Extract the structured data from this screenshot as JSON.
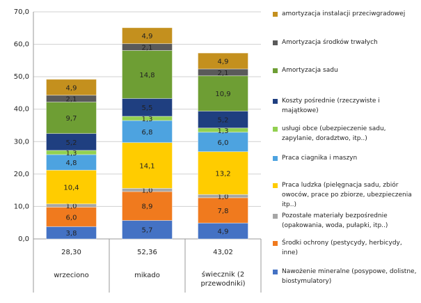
{
  "chart_data": {
    "type": "bar",
    "stacked": true,
    "categories": [
      "wrzeciono",
      "mikado",
      "świecznik (2 przewodniki)"
    ],
    "table_row": [
      {
        "value": 28.3,
        "label": "28,30"
      },
      {
        "value": 52.36,
        "label": "52,36"
      },
      {
        "value": 43.02,
        "label": "43,02"
      }
    ],
    "ylim": [
      0,
      70
    ],
    "yticks": [
      {
        "value": 0,
        "label": "0,0"
      },
      {
        "value": 10,
        "label": "10,0"
      },
      {
        "value": 20,
        "label": "20,0"
      },
      {
        "value": 30,
        "label": "30,0"
      },
      {
        "value": 40,
        "label": "40,0"
      },
      {
        "value": 50,
        "label": "50,0"
      },
      {
        "value": 60,
        "label": "60,0"
      },
      {
        "value": 70,
        "label": "70,0"
      }
    ],
    "grid": true,
    "legend": "right",
    "series": [
      {
        "name": "Nawożenie mineralne (posypowe, dolistne, biostymulatory)",
        "color": "#4472c4",
        "values": [
          3.8,
          5.7,
          4.9
        ],
        "value_labels": [
          "3,8",
          "5,7",
          "4,9"
        ]
      },
      {
        "name": "Środki ochrony (pestycydy, herbicydy, inne)",
        "color": "#f07a1e",
        "values": [
          6.0,
          8.9,
          7.8
        ],
        "value_labels": [
          "6,0",
          "8,9",
          "7,8"
        ]
      },
      {
        "name": "Pozostałe materiały bezpośrednie (opakowania, woda, pułapki, itp..)",
        "color": "#a6a6a6",
        "values": [
          1.0,
          1.0,
          1.0
        ],
        "value_labels": [
          "1,0",
          "1,0",
          "1,0"
        ]
      },
      {
        "name": "Praca ludzka (pielęgnacja sadu, zbiór owoców, prace po zbiorze, ubezpieczenia itp..)",
        "color": "#ffcc00",
        "values": [
          10.4,
          14.1,
          13.2
        ],
        "value_labels": [
          "10,4",
          "14,1",
          "13,2"
        ]
      },
      {
        "name": "Praca ciagnika i maszyn",
        "color": "#4da3e0",
        "values": [
          4.8,
          6.8,
          6.0
        ],
        "value_labels": [
          "4,8",
          "6,8",
          "6,0"
        ]
      },
      {
        "name": "usługi obce (ubezpieczenie sadu, zapylanie, doradztwo, itp..)",
        "color": "#92d050",
        "values": [
          1.3,
          1.3,
          1.3
        ],
        "value_labels": [
          "1,3",
          "1,3",
          "1,3"
        ]
      },
      {
        "name": "Koszty pośrednie (rzeczywiste i majątkowe)",
        "color": "#1f3f80",
        "values": [
          5.2,
          5.5,
          5.2
        ],
        "value_labels": [
          "5,2",
          "5,5",
          "5,2"
        ]
      },
      {
        "name": "Amortyzacja sadu",
        "color": "#6e9e34",
        "values": [
          9.7,
          14.8,
          10.9
        ],
        "value_labels": [
          "9,7",
          "14,8",
          "10,9"
        ]
      },
      {
        "name": "Amortyzacja środków trwałych",
        "color": "#5a5a5a",
        "values": [
          2.1,
          2.1,
          2.1
        ],
        "value_labels": [
          "2,1",
          "2,1",
          "2,1"
        ]
      },
      {
        "name": "amortyzacja instalacji przeciwgradowej",
        "color": "#c4901e",
        "values": [
          4.9,
          4.9,
          4.9
        ],
        "value_labels": [
          "4,9",
          "4,9",
          "4,9"
        ]
      }
    ]
  }
}
